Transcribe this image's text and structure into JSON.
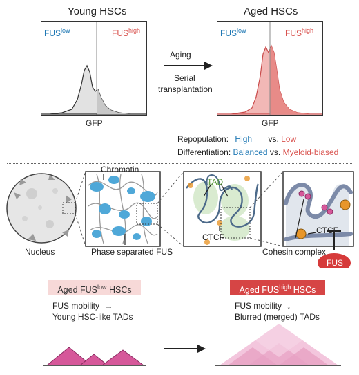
{
  "top": {
    "young_title": "Young HSCs",
    "aged_title": "Aged HSCs",
    "fus_prefix": "FUS",
    "low_sup": "low",
    "high_sup": "high",
    "xaxis_label": "GFP",
    "arrow_top": "Aging",
    "arrow_bottom_1": "Serial",
    "arrow_bottom_2": "transplantation",
    "repop_label": "Repopulation:",
    "repop_young": "High",
    "vs": "vs.",
    "repop_aged": "Low",
    "diff_label": "Differentiation:",
    "diff_young": "Balanced",
    "diff_aged": "Myeloid-biased"
  },
  "middle": {
    "nucleus_label": "Nucleus",
    "chromatin_label": "Chromatin",
    "phase_label": "Phase separated FUS",
    "tad_label": "TAD",
    "ctcf_label_1": "CTCF",
    "ctcf_label_2": "CTCF",
    "cohesin_label": "Cohesin complex",
    "fus_label": "FUS"
  },
  "bottom": {
    "left_badge_prefix": "Aged FUS",
    "left_badge_sup": "low",
    "left_badge_suffix": " HSCs",
    "left_line1": "FUS mobility",
    "left_line2": "Young HSC-like TADs",
    "right_badge_prefix": "Aged FUS",
    "right_badge_sup": "high",
    "right_badge_suffix": " HSCs",
    "right_line1": "FUS mobility",
    "right_line2": "Blurred (merged) TADs"
  },
  "colors": {
    "blue": "#1f78b4",
    "red": "#d9534f",
    "pink_light": "#f7d9d8",
    "pink_dark": "#d64545",
    "tad_magenta": "#d6589a",
    "chromatin_blue": "#4fa8d8",
    "orange": "#e8962a",
    "green": "#6aa84f"
  },
  "icons": [
    "right-arrow-icon",
    "nucleus-icon",
    "chromatin-icon",
    "tad-loop-icon",
    "cohesin-icon",
    "inhibition-icon",
    "down-arrow-icon"
  ]
}
